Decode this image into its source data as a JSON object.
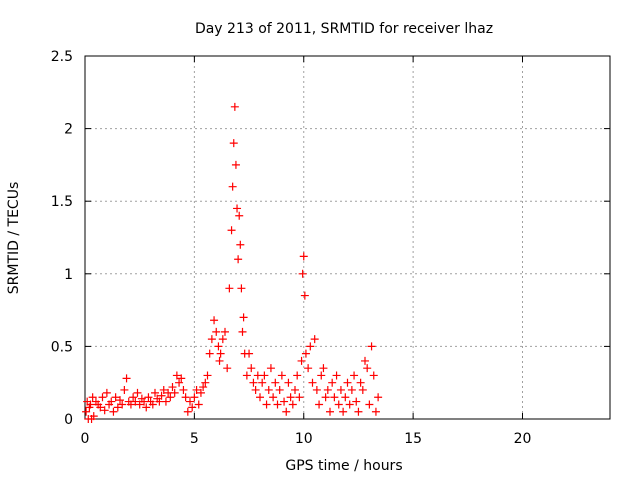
{
  "chart_data": {
    "type": "scatter",
    "title": "Day 213 of 2011, SRMTID for receiver lhaz",
    "xlabel": "GPS time / hours",
    "ylabel": "SRMTID / TECUs",
    "xlim": [
      0,
      24
    ],
    "ylim": [
      0,
      2.5
    ],
    "xticks": [
      "0",
      "5",
      "10",
      "15",
      "20"
    ],
    "yticks": [
      "0",
      "0.5",
      "1",
      "1.5",
      "2",
      "2.5"
    ],
    "grid": true,
    "marker": "+",
    "color": "#ff0000",
    "series": [
      {
        "x": [
          0.05,
          0.1,
          0.15,
          0.2,
          0.25,
          0.3,
          0.35,
          0.4,
          0.5,
          0.6,
          0.7,
          0.8,
          0.9,
          1.0,
          1.1,
          1.2,
          1.3,
          1.4,
          1.5,
          1.6,
          1.7,
          1.8,
          1.9,
          2.0,
          2.1,
          2.2,
          2.3,
          2.4,
          2.5,
          2.6,
          2.7,
          2.8,
          2.9,
          3.0,
          3.1,
          3.2,
          3.3,
          3.4,
          3.5,
          3.6,
          3.7,
          3.8,
          3.9,
          4.0,
          4.1,
          4.2,
          4.3,
          4.4,
          4.5,
          4.6,
          4.7,
          4.8,
          4.9,
          5.0,
          5.1,
          5.2,
          5.3,
          5.4,
          5.5,
          5.6,
          5.7,
          5.8,
          5.9,
          6.0,
          6.1,
          6.15,
          6.2,
          6.3,
          6.4,
          6.5,
          6.6,
          6.7,
          6.75,
          6.8,
          6.85,
          6.9,
          6.95,
          7.0,
          7.05,
          7.1,
          7.15,
          7.2,
          7.25,
          7.3,
          7.4,
          7.5,
          7.6,
          7.7,
          7.8,
          7.9,
          8.0,
          8.1,
          8.2,
          8.3,
          8.4,
          8.5,
          8.6,
          8.7,
          8.8,
          8.9,
          9.0,
          9.1,
          9.2,
          9.3,
          9.4,
          9.5,
          9.6,
          9.7,
          9.8,
          9.9,
          9.95,
          10.0,
          10.05,
          10.1,
          10.2,
          10.3,
          10.4,
          10.5,
          10.6,
          10.7,
          10.8,
          10.9,
          11.0,
          11.1,
          11.2,
          11.3,
          11.4,
          11.5,
          11.6,
          11.7,
          11.8,
          11.9,
          12.0,
          12.1,
          12.2,
          12.3,
          12.4,
          12.5,
          12.6,
          12.7,
          12.8,
          12.9,
          13.0,
          13.1,
          13.2,
          13.3,
          13.4
        ],
        "y": [
          0.05,
          0.12,
          0.0,
          0.08,
          0.1,
          0.0,
          0.15,
          0.02,
          0.12,
          0.1,
          0.08,
          0.15,
          0.06,
          0.18,
          0.1,
          0.12,
          0.05,
          0.15,
          0.08,
          0.13,
          0.1,
          0.2,
          0.28,
          0.12,
          0.1,
          0.15,
          0.12,
          0.18,
          0.1,
          0.14,
          0.12,
          0.08,
          0.15,
          0.12,
          0.1,
          0.18,
          0.14,
          0.12,
          0.16,
          0.2,
          0.12,
          0.18,
          0.15,
          0.22,
          0.18,
          0.3,
          0.25,
          0.28,
          0.2,
          0.15,
          0.05,
          0.12,
          0.08,
          0.15,
          0.2,
          0.1,
          0.18,
          0.22,
          0.25,
          0.3,
          0.45,
          0.55,
          0.68,
          0.6,
          0.5,
          0.4,
          0.45,
          0.55,
          0.6,
          0.35,
          0.9,
          1.3,
          1.6,
          1.9,
          2.15,
          1.75,
          1.45,
          1.1,
          1.4,
          1.2,
          0.9,
          0.6,
          0.7,
          0.45,
          0.3,
          0.45,
          0.35,
          0.25,
          0.2,
          0.3,
          0.15,
          0.25,
          0.3,
          0.1,
          0.2,
          0.35,
          0.15,
          0.25,
          0.1,
          0.2,
          0.3,
          0.12,
          0.05,
          0.25,
          0.15,
          0.1,
          0.2,
          0.3,
          0.15,
          0.4,
          1.0,
          1.12,
          0.85,
          0.45,
          0.35,
          0.5,
          0.25,
          0.55,
          0.2,
          0.1,
          0.3,
          0.35,
          0.15,
          0.2,
          0.05,
          0.25,
          0.15,
          0.3,
          0.1,
          0.2,
          0.05,
          0.15,
          0.25,
          0.1,
          0.2,
          0.3,
          0.12,
          0.05,
          0.25,
          0.2,
          0.4,
          0.35,
          0.1,
          0.5,
          0.3,
          0.05,
          0.15
        ]
      }
    ]
  }
}
